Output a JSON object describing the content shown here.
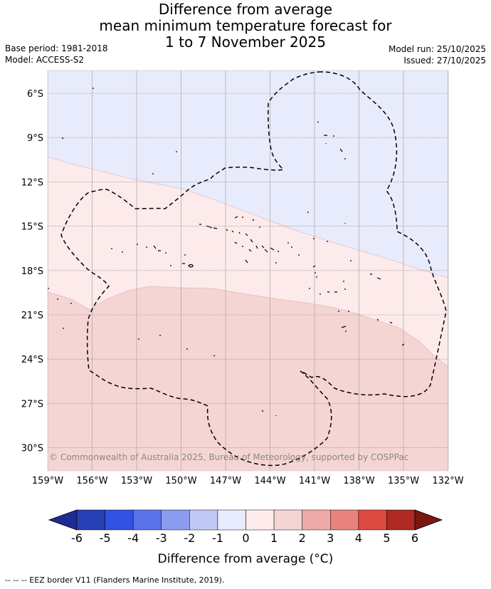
{
  "title": {
    "line1": "Difference from average",
    "line2": "mean minimum temperature forecast for",
    "line3": "1 to 7 November 2025"
  },
  "meta": {
    "base_period": "Base period: 1981-2018",
    "model": "Model: ACCESS-S2",
    "model_run": "Model run: 25/10/2025",
    "issued": "Issued: 27/10/2025"
  },
  "map": {
    "lat_labels": [
      "6°S",
      "9°S",
      "12°S",
      "15°S",
      "18°S",
      "21°S",
      "24°S",
      "27°S",
      "30°S"
    ],
    "lon_labels": [
      "159°W",
      "156°W",
      "153°W",
      "150°W",
      "147°W",
      "144°W",
      "141°W",
      "138°W",
      "135°W",
      "132°W"
    ],
    "copyright": "© Commonwealth of Australia 2025, Bureau of Meteorology, supported by COSPPac",
    "colors": {
      "band_neg": "#e8ebfb",
      "band_0_1": "#fcebea",
      "band_1_2": "#f5d5d4"
    }
  },
  "colorbar": {
    "ticks": [
      "-6",
      "-5",
      "-4",
      "-3",
      "-2",
      "-1",
      "0",
      "1",
      "2",
      "3",
      "4",
      "5",
      "6"
    ],
    "colors": [
      "#1f2a93",
      "#263fb5",
      "#3252e3",
      "#5b73e8",
      "#8a9bf0",
      "#c0c8f5",
      "#e8ebfb",
      "#fcebea",
      "#f5d5d4",
      "#eeaaa8",
      "#e8827e",
      "#db4a41",
      "#ae2a22",
      "#7a1712"
    ],
    "label": "Difference from average (°C)"
  },
  "footer": "-- -- -- EEZ border V11 (Flanders Marine Institute, 2019)."
}
